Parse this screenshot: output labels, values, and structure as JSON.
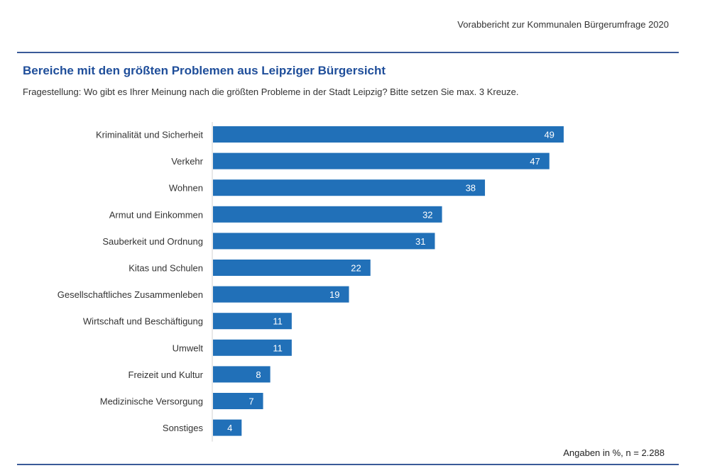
{
  "header": {
    "report_title": "Vorabbericht zur Kommunalen Bürgerumfrage 2020"
  },
  "footer": {
    "note": "Angaben in %, n = 2.288"
  },
  "colors": {
    "bar": "#2170b8",
    "title": "#1f4e9a",
    "rule": "#3a5a98"
  },
  "chart_data": {
    "type": "bar",
    "orientation": "horizontal",
    "title": "Bereiche mit den größten Problemen aus Leipziger Bürgersicht",
    "subtitle": "Fragestellung: Wo gibt es Ihrer Meinung nach die größten Probleme in der Stadt Leipzig? Bitte setzen Sie max. 3 Kreuze.",
    "categories": [
      "Kriminalität und Sicherheit",
      "Verkehr",
      "Wohnen",
      "Armut und Einkommen",
      "Sauberkeit und Ordnung",
      "Kitas und Schulen",
      "Gesellschaftliches Zusammenleben",
      "Wirtschaft und Beschäftigung",
      "Umwelt",
      "Freizeit und Kultur",
      "Medizinische Versorgung",
      "Sonstiges"
    ],
    "values": [
      49,
      47,
      38,
      32,
      31,
      22,
      19,
      11,
      11,
      8,
      7,
      4
    ],
    "xlim": [
      0,
      65
    ],
    "grid": false,
    "data_labels": true
  }
}
